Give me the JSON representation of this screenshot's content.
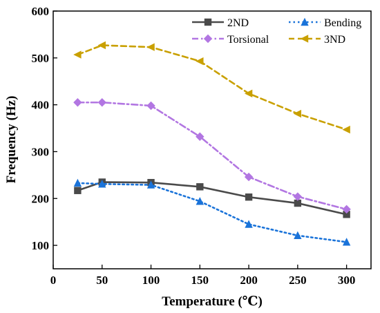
{
  "chart_data": {
    "type": "line",
    "title": "",
    "xlabel": "Temperature (℃)",
    "ylabel": "Frequency (Hz)",
    "xlim": [
      0,
      325
    ],
    "ylim": [
      50,
      600
    ],
    "x_ticks": [
      0,
      50,
      100,
      150,
      200,
      250,
      300
    ],
    "y_ticks": [
      100,
      200,
      300,
      400,
      500,
      600
    ],
    "grid": false,
    "legend_position": "top-right",
    "series": [
      {
        "name": "2ND",
        "color": "#4a4a4a",
        "line_style": "solid",
        "marker": "square",
        "x": [
          25,
          50,
          100,
          150,
          200,
          250,
          300
        ],
        "y": [
          217,
          235,
          234,
          225,
          203,
          190,
          166
        ]
      },
      {
        "name": "Bending",
        "color": "#1a73d9",
        "line_style": "dot",
        "marker": "triangle-up",
        "x": [
          25,
          50,
          100,
          150,
          200,
          250,
          300
        ],
        "y": [
          233,
          231,
          229,
          194,
          145,
          121,
          107
        ]
      },
      {
        "name": "Torsional",
        "color": "#b276e2",
        "line_style": "dash-dot",
        "marker": "diamond",
        "x": [
          25,
          50,
          100,
          150,
          200,
          250,
          300
        ],
        "y": [
          405,
          405,
          398,
          332,
          246,
          204,
          177
        ]
      },
      {
        "name": "3ND",
        "color": "#c9a000",
        "line_style": "dash",
        "marker": "triangle-left",
        "x": [
          25,
          50,
          100,
          150,
          200,
          250,
          300
        ],
        "y": [
          507,
          527,
          523,
          493,
          424,
          381,
          347
        ]
      }
    ]
  }
}
